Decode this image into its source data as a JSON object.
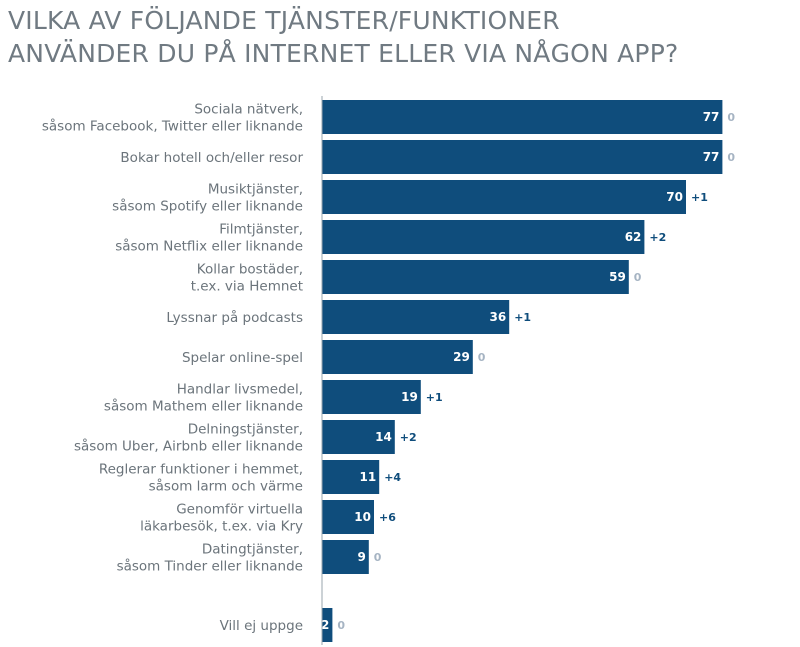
{
  "chart_data": {
    "type": "bar",
    "orientation": "horizontal",
    "title": "VILKA AV FÖLJANDE TJÄNSTER/FUNKTIONER\nANVÄNDER DU PÅ INTERNET ELLER VIA NÅGON APP?",
    "xlim": [
      0,
      80
    ],
    "grid": false,
    "colors": {
      "bar": "#0f4d7c",
      "change_positive": "#0f4d7c",
      "change_zero": "#a6b4c3",
      "label": "#6b747b",
      "title": "#707a82"
    },
    "categories": [
      [
        "Sociala nätverk,",
        "såsom Facebook, Twitter eller liknande"
      ],
      [
        "Bokar hotell och/eller resor"
      ],
      [
        "Musiktjänster,",
        "såsom Spotify eller liknande"
      ],
      [
        "Filmtjänster,",
        "såsom Netflix eller liknande"
      ],
      [
        "Kollar bostäder,",
        "t.ex. via Hemnet"
      ],
      [
        "Lyssnar på podcasts"
      ],
      [
        "Spelar online-spel"
      ],
      [
        "Handlar livsmedel,",
        "såsom Mathem eller liknande"
      ],
      [
        "Delningstjänster,",
        "såsom Uber, Airbnb eller liknande"
      ],
      [
        "Reglerar funktioner i hemmet,",
        "såsom larm och värme"
      ],
      [
        "Genomför virtuella",
        "läkarbesök, t.ex. via Kry"
      ],
      [
        "Datingtjänster,",
        "såsom Tinder eller liknande"
      ],
      [
        "Vill ej uppge"
      ]
    ],
    "values": [
      77,
      77,
      70,
      62,
      59,
      36,
      29,
      19,
      14,
      11,
      10,
      9,
      2
    ],
    "changes": [
      "0",
      "0",
      "+1",
      "+2",
      "0",
      "+1",
      "0",
      "+1",
      "+2",
      "+4",
      "+6",
      "0",
      "0"
    ]
  }
}
